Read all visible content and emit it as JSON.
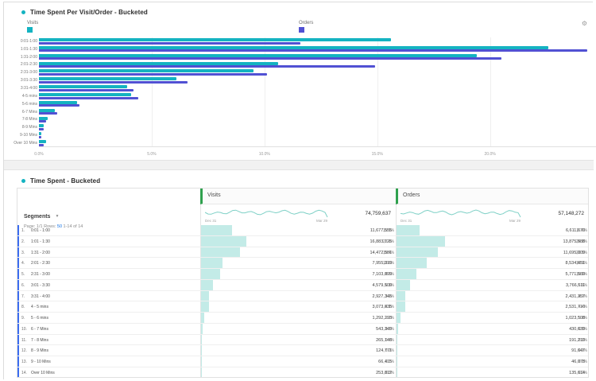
{
  "colors": {
    "visits_teal": "#14b3c1",
    "orders_purple": "#5151d3",
    "table_bar_pale_teal": "#c3ebe7",
    "sparkline": "#7ed0c6",
    "header_accent_green": "#2fa14e",
    "row_indicator_blue": "#3c6df0",
    "link_blue": "#1473e6"
  },
  "chart_panel": {
    "title": "Time Spent Per Visit/Order - Bucketed",
    "settings_icon": "gear-icon",
    "legend": [
      {
        "label": "Visits",
        "color": "#14b3c1"
      },
      {
        "label": "Orders",
        "color": "#5151d3"
      }
    ]
  },
  "chart_data": {
    "type": "bar",
    "orientation": "horizontal",
    "title": "Time Spent Per Visit/Order - Bucketed",
    "categories": [
      "0:01-1:00",
      "1:01-1:30",
      "1:31-2:00",
      "2:01-2:30",
      "2:31-3:00",
      "3:01-3:30",
      "3:31-4:00",
      "4-5 mins",
      "5-6 mins",
      "6-7 Mins",
      "7-8 Mins",
      "8-9 Mins",
      "9-10 Mins",
      "Over 10 Mins"
    ],
    "series": [
      {
        "name": "Visits",
        "unit": "% of total visits",
        "values": [
          15.6,
          22.6,
          19.4,
          10.6,
          9.5,
          6.1,
          3.9,
          4.1,
          1.7,
          0.7,
          0.4,
          0.2,
          0.1,
          0.3
        ]
      },
      {
        "name": "Orders",
        "unit": "% of total orders",
        "values": [
          11.6,
          24.3,
          20.5,
          14.9,
          10.1,
          6.6,
          4.2,
          4.4,
          1.8,
          0.8,
          0.3,
          0.2,
          0.1,
          0.2
        ]
      }
    ],
    "x_ticks": [
      {
        "value": 0,
        "label": "0.0%"
      },
      {
        "value": 5,
        "label": "5.0%"
      },
      {
        "value": 10,
        "label": "10.0%"
      },
      {
        "value": 15,
        "label": "15.0%"
      },
      {
        "value": 20,
        "label": "20.0%"
      }
    ],
    "xlim": [
      0,
      24.7
    ],
    "grid": true,
    "legend_position": "top"
  },
  "table_panel": {
    "title": "Time Spent - Bucketed",
    "segments_label": "Segments",
    "pagination": {
      "page_label": "Page: 1/1",
      "rows_label": "Rows:",
      "rows_value": "50",
      "range_label": "1-14 of 14"
    },
    "columns": [
      {
        "label": "Visits",
        "total": "74,759,637",
        "date_start": "Dec 31",
        "date_end": "Mar 29"
      },
      {
        "label": "Orders",
        "total": "57,148,272",
        "date_start": "Dec 31",
        "date_end": "Mar 29"
      }
    ],
    "rows": [
      {
        "num": "1.",
        "segment": "0:01 - 1:00",
        "visits": "11,677,555",
        "visits_pct": 15.6,
        "orders": "6,611,670",
        "orders_pct": 11.6
      },
      {
        "num": "2.",
        "segment": "1:01 - 1:30",
        "visits": "16,883,125",
        "visits_pct": 22.6,
        "orders": "13,875,588",
        "orders_pct": 24.3
      },
      {
        "num": "3.",
        "segment": "1:31 - 2:00",
        "visits": "14,472,581",
        "visits_pct": 19.4,
        "orders": "11,695,009",
        "orders_pct": 20.5
      },
      {
        "num": "4.",
        "segment": "2:01 - 2:30",
        "visits": "7,955,319",
        "visits_pct": 10.6,
        "orders": "8,534,651",
        "orders_pct": 14.9
      },
      {
        "num": "5.",
        "segment": "2:31 - 3:00",
        "visits": "7,103,899",
        "visits_pct": 9.5,
        "orders": "5,771,589",
        "orders_pct": 10.1
      },
      {
        "num": "6.",
        "segment": "3:01 - 3:30",
        "visits": "4,579,509",
        "visits_pct": 6.1,
        "orders": "3,766,511",
        "orders_pct": 6.6
      },
      {
        "num": "7.",
        "segment": "3:31 - 4:00",
        "visits": "2,927,345",
        "visits_pct": 3.9,
        "orders": "2,431,357",
        "orders_pct": 4.2
      },
      {
        "num": "8.",
        "segment": "4 - 5 mins",
        "visits": "3,073,835",
        "visits_pct": 4.1,
        "orders": "2,531,710",
        "orders_pct": 4.4
      },
      {
        "num": "9.",
        "segment": "5 - 6 mins",
        "visits": "1,292,293",
        "visits_pct": 1.7,
        "orders": "1,023,508",
        "orders_pct": 1.8
      },
      {
        "num": "10.",
        "segment": "6 - 7 Mins",
        "visits": "543,349",
        "visits_pct": 0.7,
        "orders": "430,639",
        "orders_pct": 0.8
      },
      {
        "num": "11.",
        "segment": "7 - 8 Mins",
        "visits": "265,148",
        "visits_pct": 0.4,
        "orders": "191,210",
        "orders_pct": 0.3
      },
      {
        "num": "12.",
        "segment": "8 - 9 Mins",
        "visits": "124,771",
        "visits_pct": 0.2,
        "orders": "91,647",
        "orders_pct": 0.2
      },
      {
        "num": "13.",
        "segment": "9 - 10 Mins",
        "visits": "66,415",
        "visits_pct": 0.1,
        "orders": "46,078",
        "orders_pct": 0.1
      },
      {
        "num": "14.",
        "segment": "Over 10 Mins",
        "visits": "253,812",
        "visits_pct": 0.3,
        "orders": "135,614",
        "orders_pct": 0.2
      }
    ]
  }
}
